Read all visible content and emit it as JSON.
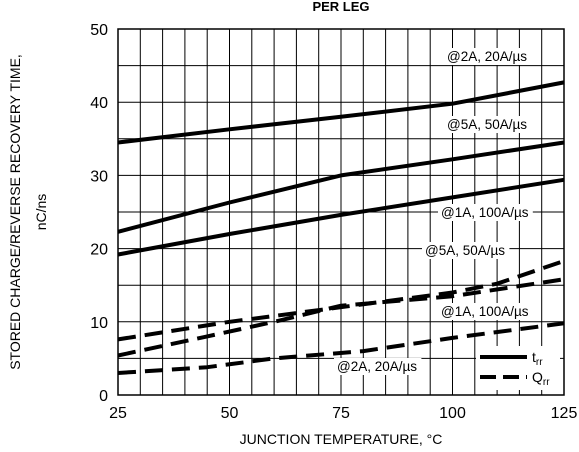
{
  "chart_data": {
    "type": "line",
    "title": "PER LEG",
    "xlabel": "JUNCTION TEMPERATURE, °C",
    "ylabel_line1": "STORED CHARGE/REVERSE RECOVERY TIME,",
    "ylabel_line2": "nC/ns",
    "xlim": [
      25,
      125
    ],
    "ylim": [
      0,
      50
    ],
    "x_ticks": [
      "25",
      "50",
      "75",
      "100",
      "125"
    ],
    "y_ticks": [
      "0",
      "10",
      "20",
      "30",
      "40",
      "50"
    ],
    "grid": true,
    "legend_position": "bottom-right",
    "legend": [
      {
        "label": "t",
        "sub": "rr",
        "style": "solid"
      },
      {
        "label": "Q",
        "sub": "rr",
        "style": "dashed"
      }
    ],
    "series": [
      {
        "label": "@2A, 20A/µs",
        "style": "solid",
        "x": [
          25,
          50,
          75,
          100,
          125
        ],
        "y": [
          34.5,
          36.3,
          38.0,
          39.8,
          42.7
        ]
      },
      {
        "label": "@5A, 50A/µs",
        "style": "solid",
        "x": [
          25,
          50,
          75,
          100,
          125
        ],
        "y": [
          22.3,
          26.3,
          30.0,
          32.2,
          34.5
        ]
      },
      {
        "label": "@1A, 100A/µs",
        "style": "solid",
        "x": [
          25,
          50,
          75,
          100,
          125
        ],
        "y": [
          19.2,
          22.0,
          24.6,
          27.0,
          29.4
        ]
      },
      {
        "label": "@5A, 50A/µs",
        "style": "dashed",
        "x": [
          25,
          50,
          75,
          100,
          110,
          125
        ],
        "y": [
          7.6,
          10.0,
          12.0,
          14.0,
          15.2,
          18.3
        ]
      },
      {
        "label": "@1A, 100A/µs",
        "style": "dashed",
        "x": [
          25,
          45,
          60,
          75,
          100,
          125
        ],
        "y": [
          5.4,
          8.0,
          10.0,
          12.2,
          13.5,
          15.8
        ]
      },
      {
        "label": "@2A, 20A/µs",
        "style": "dashed",
        "x": [
          25,
          45,
          60,
          80,
          100,
          125
        ],
        "y": [
          3.0,
          3.8,
          5.0,
          6.0,
          7.8,
          9.8
        ]
      }
    ]
  }
}
